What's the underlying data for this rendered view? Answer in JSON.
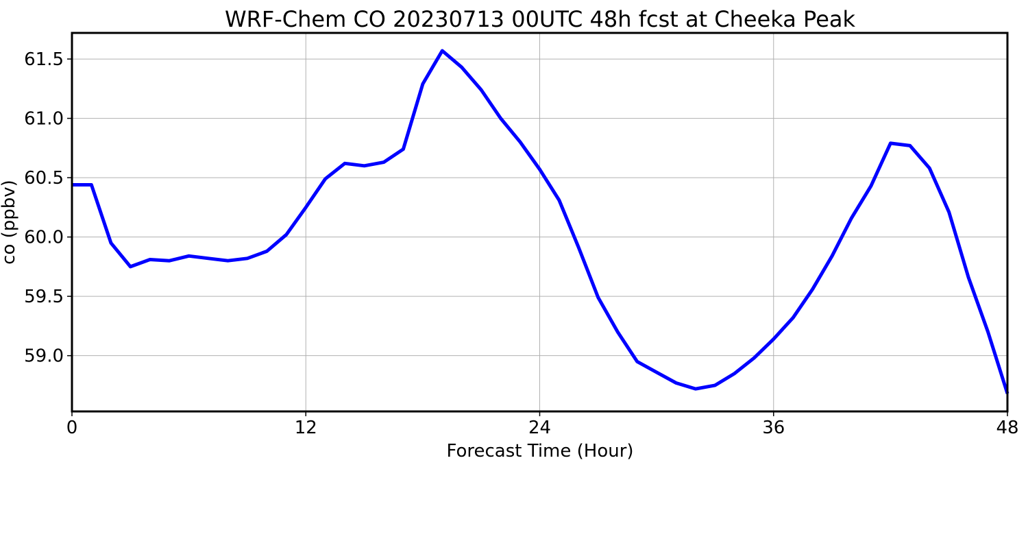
{
  "chart_data": {
    "type": "line",
    "title": "WRF-Chem CO  20230713 00UTC 48h fcst at Cheeka Peak",
    "xlabel": "Forecast Time (Hour)",
    "ylabel": "co  (ppbv)",
    "xlim": [
      0,
      48
    ],
    "ylim": [
      58.53,
      61.72
    ],
    "x_ticks": [
      0,
      12,
      24,
      36,
      48
    ],
    "y_ticks": [
      59.0,
      59.5,
      60.0,
      60.5,
      61.0,
      61.5
    ],
    "y_tick_labels": [
      "59.0",
      "59.5",
      "60.0",
      "60.5",
      "61.0",
      "61.5"
    ],
    "grid": true,
    "line_color": "#0000ff",
    "series": [
      {
        "x": [
          0,
          1,
          2,
          3,
          4,
          5,
          6,
          7,
          8,
          9,
          10,
          11,
          12,
          13,
          14,
          15,
          16,
          17,
          18,
          19,
          20,
          21,
          22,
          23,
          24,
          25,
          26,
          27,
          28,
          29,
          30,
          31,
          32,
          33,
          34,
          35,
          36,
          37,
          38,
          39,
          40,
          41,
          42,
          43,
          44,
          45,
          46,
          47,
          48
        ],
        "values": [
          60.44,
          60.44,
          59.95,
          59.75,
          59.81,
          59.8,
          59.84,
          59.82,
          59.8,
          59.82,
          59.88,
          60.02,
          60.25,
          60.49,
          60.62,
          60.6,
          60.63,
          60.74,
          61.29,
          61.57,
          61.43,
          61.24,
          61.0,
          60.8,
          60.57,
          60.31,
          59.91,
          59.49,
          59.2,
          58.95,
          58.86,
          58.77,
          58.72,
          58.75,
          58.85,
          58.98,
          59.14,
          59.32,
          59.56,
          59.84,
          60.16,
          60.43,
          60.79,
          60.77,
          60.58,
          60.21,
          59.66,
          59.2,
          58.68
        ]
      }
    ]
  }
}
